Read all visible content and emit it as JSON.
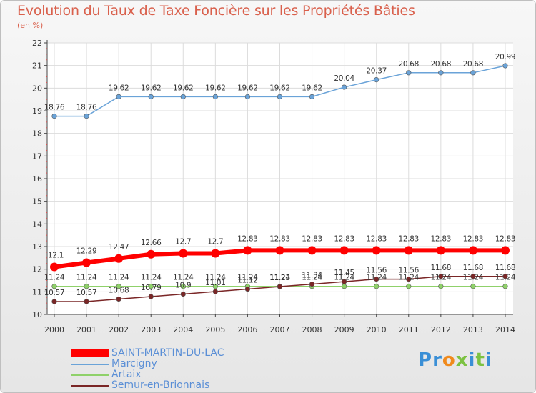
{
  "title": "Evolution du Taux de Taxe Foncière sur les Propriétés Bâties",
  "subtitle": "(en %)",
  "chart_data": {
    "type": "line",
    "title": "Evolution du Taux de Taxe Foncière sur les Propriétés Bâties",
    "ylabel": "(en %)",
    "xlabel": "",
    "ylim": [
      10,
      22
    ],
    "yticks": [
      "10",
      "11",
      "12",
      "13",
      "14",
      "15",
      "16",
      "17",
      "18",
      "19",
      "20",
      "21",
      "22"
    ],
    "categories": [
      "2000",
      "2001",
      "2002",
      "2003",
      "2004",
      "2005",
      "2006",
      "2007",
      "2008",
      "2009",
      "2010",
      "2011",
      "2012",
      "2013",
      "2014"
    ],
    "series": [
      {
        "name": "Marcigny",
        "color": "#6aa3d8",
        "values": [
          18.76,
          18.76,
          19.62,
          19.62,
          19.62,
          19.62,
          19.62,
          19.62,
          19.62,
          20.04,
          20.37,
          20.68,
          20.68,
          20.68,
          20.99
        ],
        "labels": [
          "18.76",
          "18.76",
          "19.62",
          "19.62",
          "19.62",
          "19.62",
          "19.62",
          "19.62",
          "19.62",
          "20.04",
          "20.37",
          "20.68",
          "20.68",
          "20.68",
          "20.99"
        ]
      },
      {
        "name": "Artaix",
        "color": "#8fd16a",
        "values": [
          11.24,
          11.24,
          11.24,
          11.24,
          11.24,
          11.24,
          11.24,
          11.24,
          11.24,
          11.24,
          11.24,
          11.24,
          11.24,
          11.24,
          11.24
        ],
        "labels": [
          "11.24",
          "11.24",
          "11.24",
          "11.24",
          "11.24",
          "11.24",
          "11.24",
          "11.24",
          "11.24",
          "11.24",
          "11.24",
          "11.24",
          "11.24",
          "11.24",
          "11.24"
        ]
      },
      {
        "name": "Semur-en-Brionnais",
        "color": "#7a2626",
        "values": [
          10.57,
          10.57,
          10.68,
          10.79,
          10.9,
          11.01,
          11.12,
          11.23,
          11.34,
          11.45,
          11.56,
          11.56,
          11.68,
          11.68,
          11.68
        ],
        "labels": [
          "10.57",
          "10.57",
          "10.68",
          "10.79",
          "10.9",
          "11.01",
          "11.12",
          "11.23",
          "11.34",
          "11.45",
          "11.56",
          "11.56",
          "11.68",
          "11.68",
          "11.68"
        ]
      },
      {
        "name": "SAINT-MARTIN-DU-LAC",
        "color": "#ff0000",
        "values": [
          12.1,
          12.29,
          12.47,
          12.66,
          12.7,
          12.7,
          12.83,
          12.83,
          12.83,
          12.83,
          12.83,
          12.83,
          12.83,
          12.83,
          12.83
        ],
        "labels": [
          "12.1",
          "12.29",
          "12.47",
          "12.66",
          "12.7",
          "12.7",
          "12.83",
          "12.83",
          "12.83",
          "12.83",
          "12.83",
          "12.83",
          "12.83",
          "12.83",
          "12.83"
        ]
      }
    ],
    "legend": [
      "SAINT-MARTIN-DU-LAC",
      "Marcigny",
      "Artaix",
      "Semur-en-Brionnais"
    ],
    "legend_position": "bottom-left"
  },
  "logo": {
    "letters": [
      "P",
      "r",
      "o",
      "x",
      "i",
      "t",
      "i"
    ],
    "colors": [
      "#3a8fd6",
      "#3a8fd6",
      "#f08a1c",
      "#7cc242",
      "#3a8fd6",
      "#7cc242",
      "#3a8fd6"
    ]
  }
}
